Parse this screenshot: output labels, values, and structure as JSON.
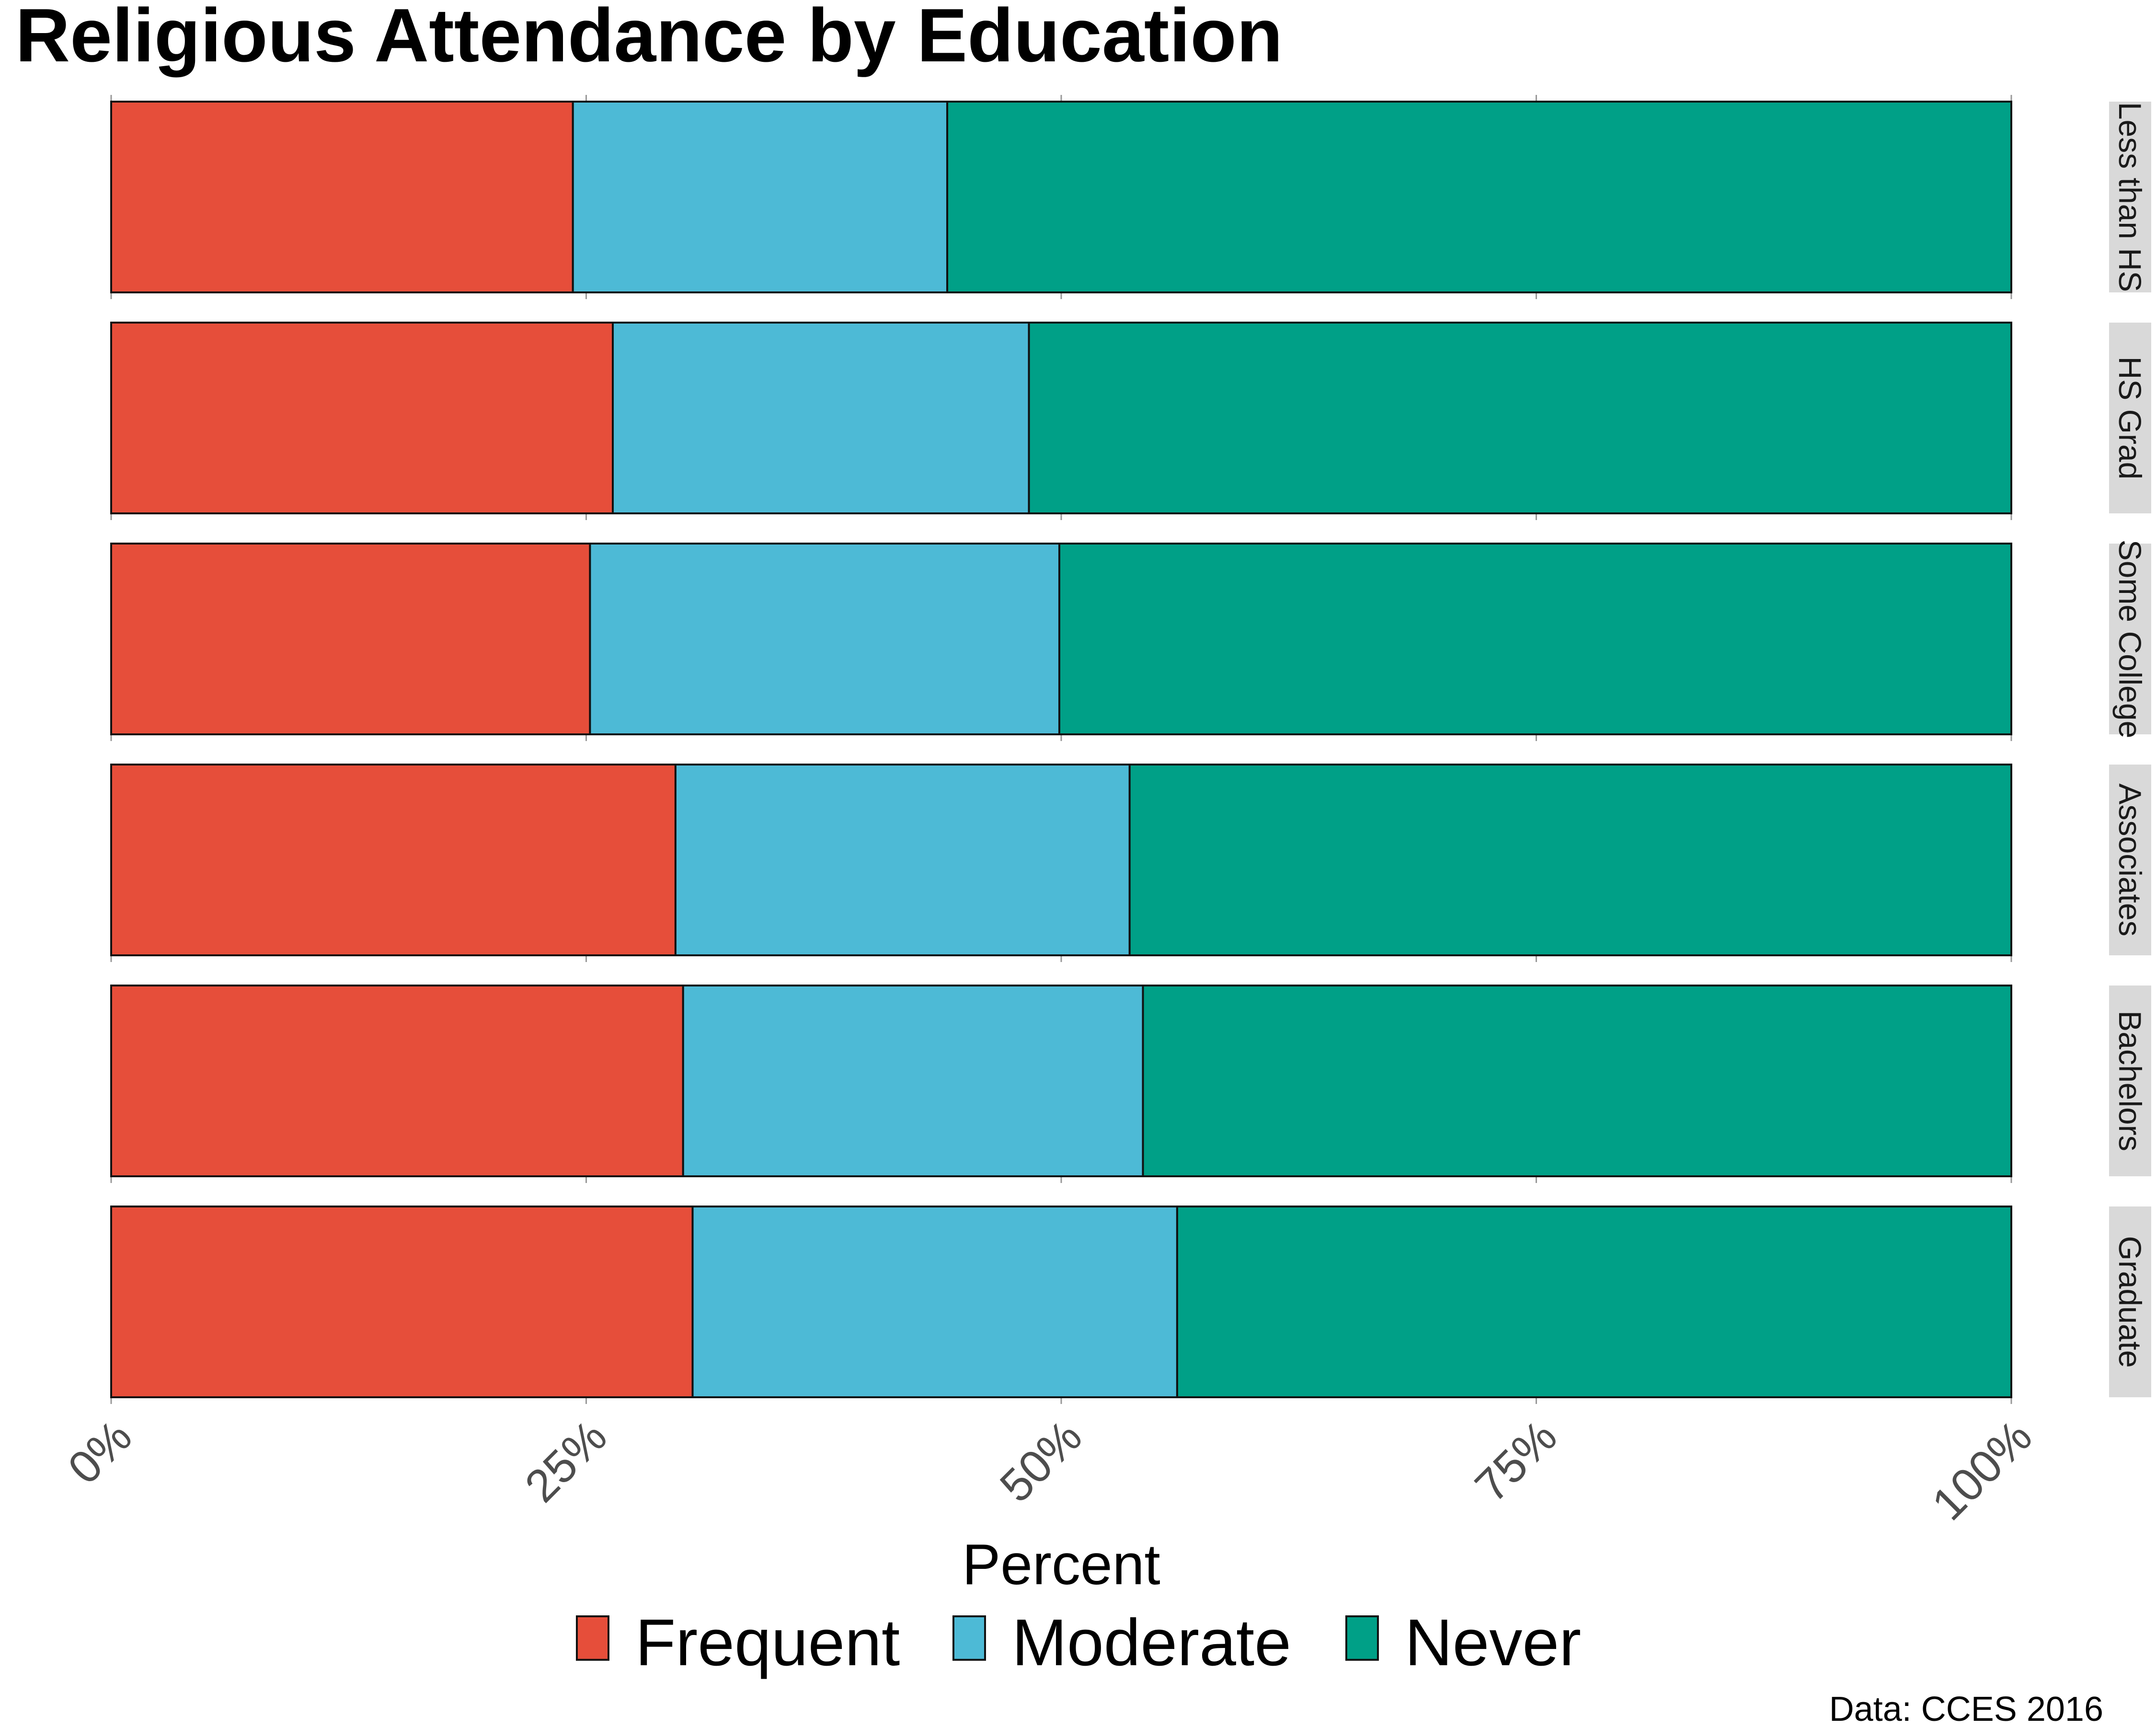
{
  "chart_data": {
    "type": "bar",
    "orientation": "horizontal",
    "stacked": true,
    "title": "Religious Attendance by Education",
    "xlabel": "Percent",
    "ylabel": "",
    "xlim": [
      0,
      100
    ],
    "x_ticks": [
      "0%",
      "25%",
      "50%",
      "75%",
      "100%"
    ],
    "x_tick_values": [
      0,
      25,
      50,
      75,
      100
    ],
    "grid": true,
    "legend_position": "bottom",
    "caption": "Data: CCES 2016",
    "categories": [
      "Less than HS",
      "HS Grad",
      "Some College",
      "Associates",
      "Bachelors",
      "Graduate"
    ],
    "series": [
      {
        "name": "Frequent",
        "color": "#E64E3A",
        "values": [
          24.3,
          26.4,
          25.2,
          29.7,
          30.1,
          30.6
        ]
      },
      {
        "name": "Moderate",
        "color": "#4DBAD6",
        "values": [
          19.7,
          21.9,
          24.7,
          23.9,
          24.2,
          25.5
        ]
      },
      {
        "name": "Never",
        "color": "#00A087",
        "values": [
          56.0,
          51.7,
          50.1,
          46.4,
          45.7,
          43.9
        ]
      }
    ]
  }
}
